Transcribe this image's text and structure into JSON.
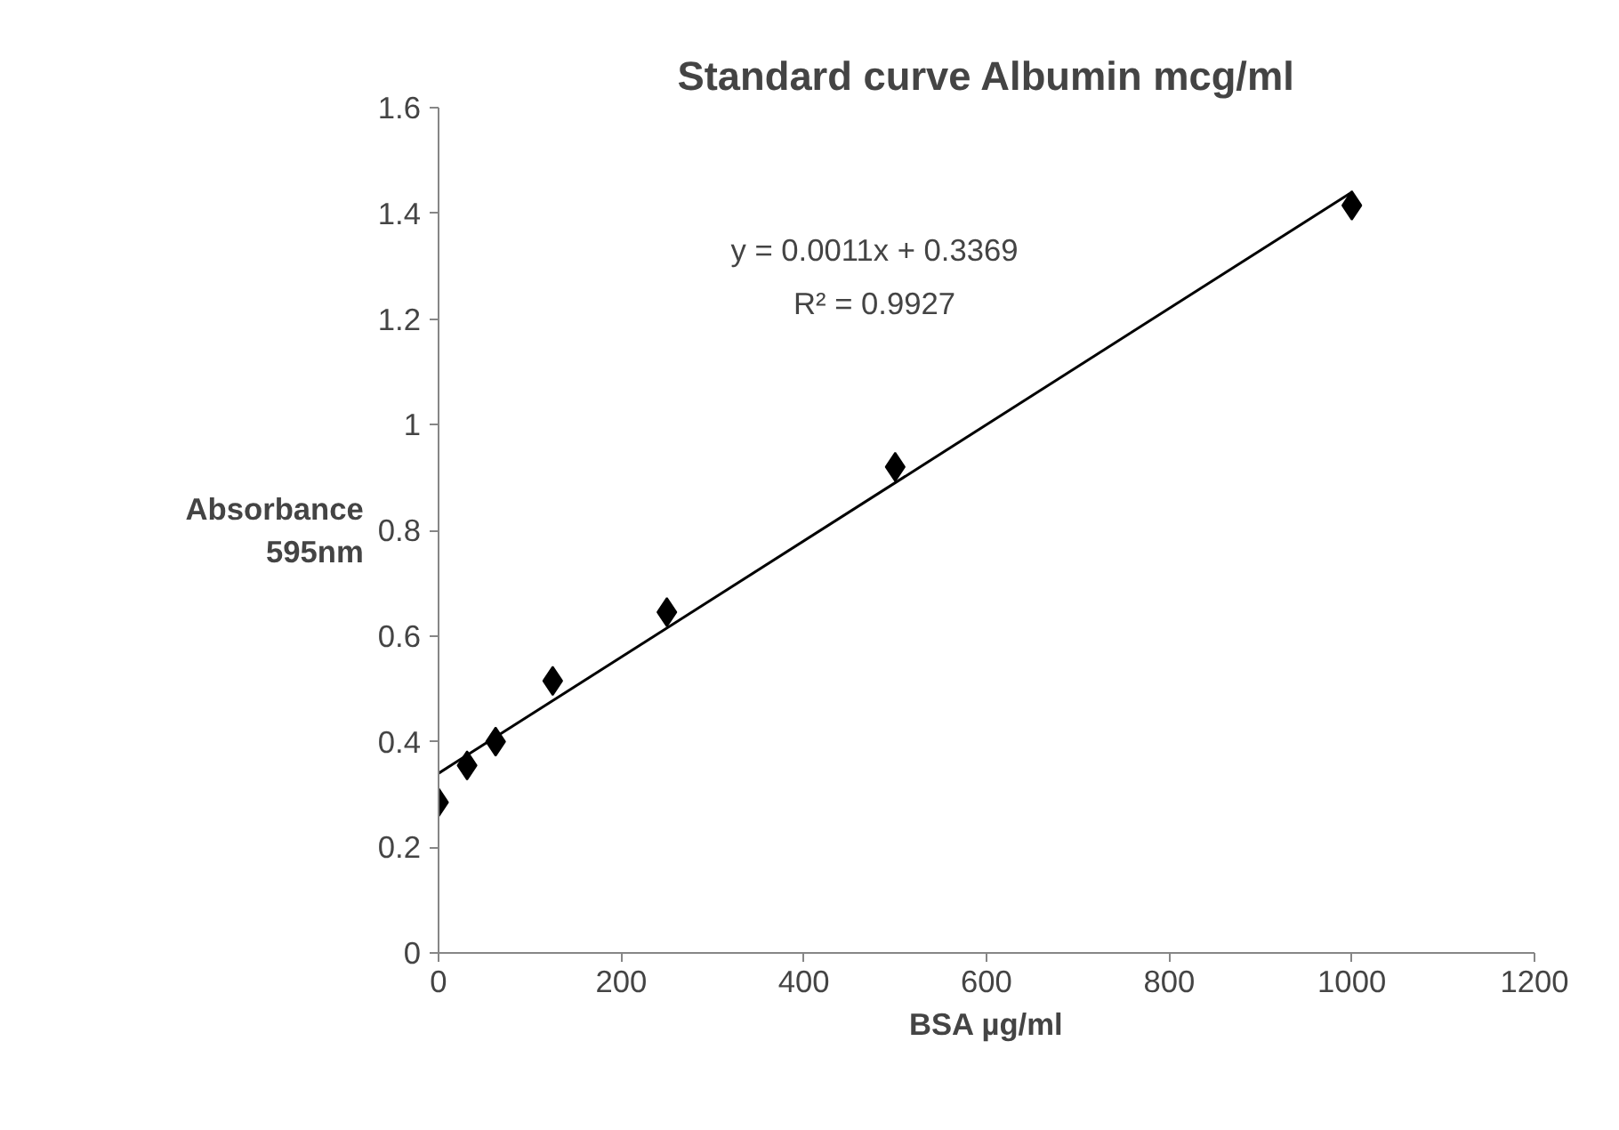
{
  "chart_data": {
    "type": "scatter",
    "title": "Standard curve Albumin mcg/ml",
    "xlabel": "BSA µg/ml",
    "ylabel": "Absorbance 595nm",
    "series": [
      {
        "marker": "diamond",
        "color": "#000000",
        "x": [
          0,
          31.25,
          62.5,
          125,
          250,
          500,
          1000
        ],
        "values": [
          0.285,
          0.355,
          0.4,
          0.515,
          0.645,
          0.92,
          1.415
        ]
      },
      {
        "type": "line",
        "color": "#000000",
        "x": [
          0,
          1000
        ],
        "values": [
          0.34,
          1.44
        ]
      }
    ],
    "annotations": [
      "y = 0.0011x + 0.3369",
      "R² = 0.9927"
    ],
    "xlim": [
      0,
      1200
    ],
    "ylim": [
      0,
      1.6
    ],
    "xticks": [
      0,
      200,
      400,
      600,
      800,
      1000,
      1200
    ],
    "yticks": [
      0,
      0.2,
      0.4,
      0.6,
      0.8,
      1,
      1.2,
      1.4,
      1.6
    ],
    "grid": false
  }
}
